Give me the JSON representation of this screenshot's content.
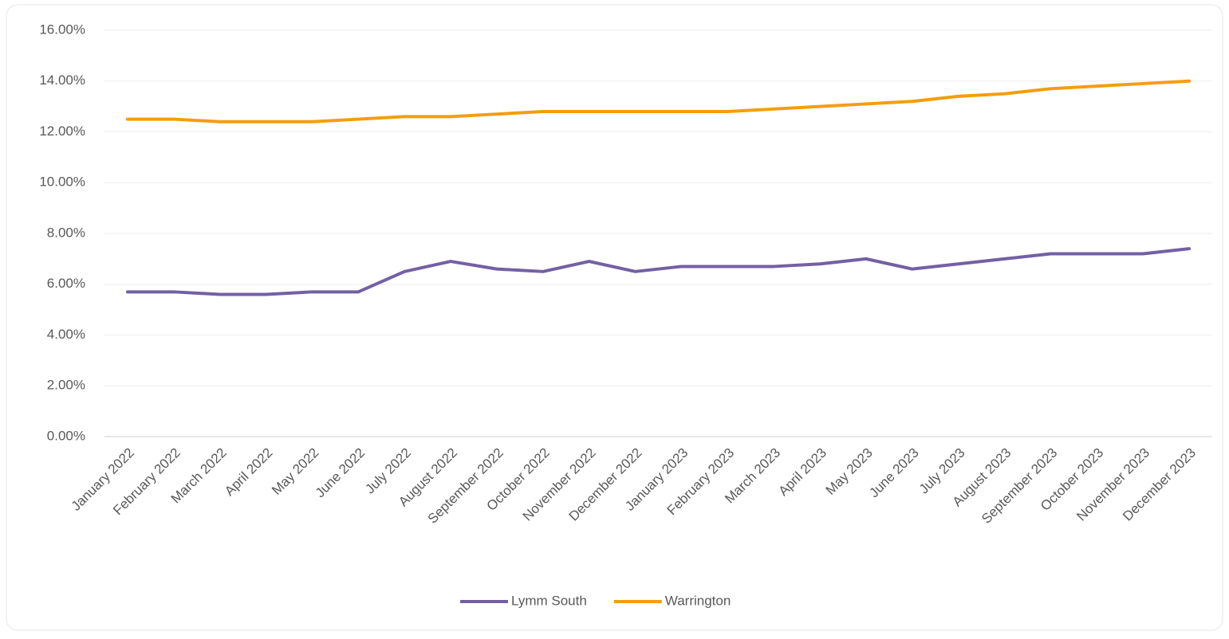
{
  "chart_data": {
    "type": "line",
    "categories": [
      "January 2022",
      "February 2022",
      "March 2022",
      "April 2022",
      "May 2022",
      "June 2022",
      "July 2022",
      "August 2022",
      "September 2022",
      "October 2022",
      "November 2022",
      "December 2022",
      "January 2023",
      "February 2023",
      "March 2023",
      "April 2023",
      "May 2023",
      "June 2023",
      "July 2023",
      "August 2023",
      "September 2023",
      "October 2023",
      "November 2023",
      "December 2023"
    ],
    "series": [
      {
        "name": "Lymm South",
        "color": "#7360a4",
        "values": [
          5.7,
          5.7,
          5.6,
          5.6,
          5.7,
          5.7,
          6.5,
          6.9,
          6.6,
          6.5,
          6.9,
          6.5,
          6.7,
          6.7,
          6.7,
          6.8,
          7.0,
          6.6,
          6.8,
          7.0,
          7.2,
          7.2,
          7.2,
          7.4
        ]
      },
      {
        "name": "Warrington",
        "color": "#f59d0e",
        "values": [
          12.5,
          12.5,
          12.4,
          12.4,
          12.4,
          12.5,
          12.6,
          12.6,
          12.7,
          12.8,
          12.8,
          12.8,
          12.8,
          12.8,
          12.9,
          13.0,
          13.1,
          13.2,
          13.4,
          13.5,
          13.7,
          13.8,
          13.9,
          14.0
        ]
      }
    ],
    "ylim": [
      0,
      16
    ],
    "yticks": [
      {
        "value": 0,
        "label": "0.00%"
      },
      {
        "value": 2,
        "label": "2.00%"
      },
      {
        "value": 4,
        "label": "4.00%"
      },
      {
        "value": 6,
        "label": "6.00%"
      },
      {
        "value": 8,
        "label": "8.00%"
      },
      {
        "value": 10,
        "label": "10.00%"
      },
      {
        "value": 12,
        "label": "12.00%"
      },
      {
        "value": 14,
        "label": "14.00%"
      },
      {
        "value": 16,
        "label": "16.00%"
      }
    ],
    "grid": true,
    "legend": "bottom"
  }
}
